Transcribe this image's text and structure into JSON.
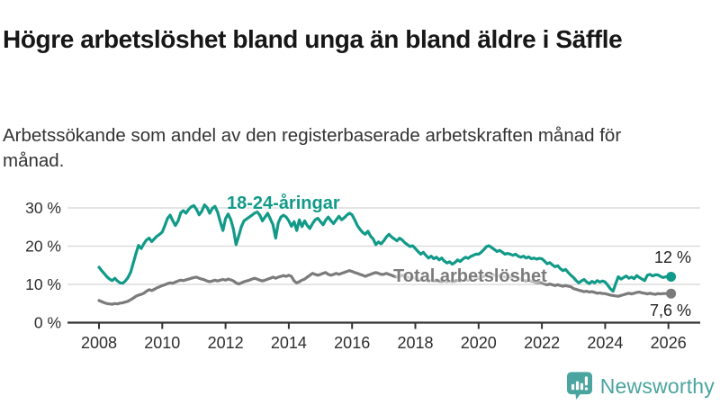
{
  "title": "Högre arbetslöshet bland unga än bland äldre i Säffle",
  "subtitle": "Arbetssökande som andel av den registerbaserade arbetskraften månad för månad.",
  "branding": {
    "name": "Newsworthy",
    "icon": "bar-chart-speech-bubble-icon",
    "color": "#4AA49F"
  },
  "colors": {
    "accent_teal": "#129A89",
    "neutral_gray": "#7B7B7B",
    "grid": "#DCDCDC",
    "axis": "#333333",
    "text": "#171717"
  },
  "chart_data": {
    "type": "line",
    "title": "Högre arbetslöshet bland unga än bland äldre i Säffle",
    "subtitle": "Arbetssökande som andel av den registerbaserade arbetskraften månad för månad.",
    "x_interval": "monthly",
    "x_start": "2008-01",
    "x_end": "2026-02",
    "x_tick_labels": [
      "2008",
      "2010",
      "2012",
      "2014",
      "2016",
      "2018",
      "2020",
      "2022",
      "2024",
      "2026"
    ],
    "y_ticks": [
      0,
      10,
      20,
      30
    ],
    "y_tick_labels": [
      "0 %",
      "10 %",
      "20 %",
      "30 %"
    ],
    "ylim": [
      0,
      33
    ],
    "grid": "horizontal",
    "legend_position": "inline-labels",
    "series": [
      {
        "name": "18-24-åringar",
        "color": "#129A89",
        "end_label": "12 %",
        "end_value": 12,
        "values": [
          14.5,
          13.6,
          12.8,
          12.0,
          11.4,
          11.0,
          11.6,
          10.9,
          10.4,
          10.3,
          10.9,
          11.8,
          13.2,
          15.6,
          18.0,
          20.2,
          19.4,
          20.6,
          21.6,
          22.1,
          21.2,
          21.9,
          22.6,
          23.1,
          23.7,
          25.4,
          27.3,
          28.1,
          26.6,
          25.4,
          26.6,
          28.7,
          29.3,
          28.6,
          29.6,
          30.3,
          30.6,
          29.6,
          28.2,
          29.1,
          30.8,
          30.1,
          28.6,
          29.9,
          30.4,
          28.9,
          26.4,
          24.1,
          27.2,
          28.4,
          26.9,
          24.4,
          20.4,
          22.6,
          25.1,
          26.6,
          27.1,
          27.6,
          28.1,
          28.6,
          29.0,
          28.1,
          26.6,
          27.6,
          28.6,
          27.1,
          25.6,
          22.1,
          26.1,
          27.6,
          28.1,
          27.6,
          26.6,
          25.2,
          26.4,
          24.1,
          26.9,
          25.1,
          26.6,
          25.4,
          24.6,
          25.9,
          26.9,
          27.3,
          26.4,
          25.6,
          26.8,
          27.6,
          26.6,
          25.9,
          26.9,
          27.8,
          26.9,
          27.4,
          28.1,
          28.6,
          28.2,
          26.9,
          25.4,
          24.4,
          23.6,
          23.1,
          23.9,
          22.6,
          21.9,
          20.4,
          21.1,
          20.6,
          21.4,
          22.4,
          23.1,
          22.4,
          21.9,
          21.4,
          22.1,
          21.6,
          20.9,
          20.4,
          19.9,
          20.1,
          19.4,
          18.6,
          17.9,
          18.4,
          17.6,
          16.9,
          17.4,
          16.7,
          17.1,
          16.4,
          16.9,
          16.1,
          15.6,
          15.9,
          15.3,
          15.7,
          16.4,
          16.0,
          16.6,
          17.1,
          16.8,
          17.3,
          17.6,
          17.9,
          17.9,
          18.4,
          19.1,
          19.9,
          20.1,
          19.6,
          19.1,
          18.6,
          18.9,
          18.4,
          17.9,
          18.1,
          17.9,
          17.6,
          17.9,
          17.4,
          17.1,
          17.4,
          16.9,
          17.2,
          16.7,
          16.9,
          16.6,
          16.8,
          16.7,
          16.1,
          15.4,
          15.7,
          15.1,
          14.6,
          14.9,
          14.1,
          13.6,
          13.9,
          13.1,
          12.4,
          11.8,
          11.0,
          10.4,
          10.9,
          11.3,
          10.6,
          10.2,
          10.8,
          10.4,
          11.0,
          10.6,
          10.9,
          10.6,
          9.8,
          8.8,
          8.2,
          10.2,
          12.0,
          11.4,
          11.8,
          12.2,
          11.6,
          11.9,
          11.5,
          12.3,
          11.8,
          11.4,
          11.0,
          12.4,
          12.6,
          12.2,
          12.5,
          12.5,
          12.1,
          11.8,
          12.0,
          12.0,
          12.0
        ]
      },
      {
        "name": "Total arbetslöshet",
        "color": "#7B7B7B",
        "end_label": "7,6 %",
        "end_value": 7.6,
        "values": [
          5.8,
          5.5,
          5.2,
          5.0,
          4.9,
          4.8,
          5.0,
          4.9,
          5.1,
          5.2,
          5.4,
          5.6,
          6.0,
          6.4,
          6.9,
          7.2,
          7.4,
          7.7,
          8.2,
          8.6,
          8.4,
          8.7,
          9.1,
          9.4,
          9.7,
          9.9,
          10.2,
          10.4,
          10.3,
          10.6,
          10.9,
          11.1,
          11.0,
          11.2,
          11.4,
          11.6,
          11.8,
          11.9,
          11.6,
          11.4,
          11.2,
          10.9,
          10.7,
          10.9,
          11.1,
          10.9,
          11.1,
          11.3,
          11.1,
          11.4,
          11.2,
          10.9,
          10.4,
          10.1,
          10.4,
          10.7,
          10.9,
          11.1,
          11.4,
          11.6,
          11.4,
          11.1,
          10.9,
          11.1,
          11.4,
          11.6,
          11.9,
          11.6,
          11.9,
          12.1,
          12.3,
          12.1,
          12.4,
          12.1,
          10.9,
          10.4,
          10.7,
          11.1,
          11.4,
          11.9,
          12.4,
          12.9,
          12.6,
          12.4,
          12.6,
          12.9,
          13.1,
          12.6,
          12.4,
          12.6,
          12.9,
          12.6,
          12.9,
          13.1,
          13.4,
          13.6,
          13.4,
          13.1,
          12.9,
          12.6,
          12.4,
          12.1,
          12.4,
          12.6,
          12.9,
          13.1,
          12.9,
          12.6,
          12.6,
          12.9,
          12.6,
          12.4,
          12.1,
          11.9,
          12.1,
          12.4,
          12.1,
          11.9,
          11.6,
          11.9,
          11.6,
          11.4,
          11.1,
          11.4,
          11.1,
          10.9,
          11.1,
          10.9,
          11.1,
          10.9,
          10.7,
          10.9,
          10.7,
          10.9,
          10.7,
          10.9,
          11.1,
          10.9,
          11.1,
          11.3,
          11.1,
          11.3,
          11.4,
          11.6,
          11.6,
          11.9,
          12.1,
          12.6,
          12.9,
          12.6,
          12.4,
          12.1,
          12.3,
          12.1,
          11.9,
          12.1,
          11.9,
          11.7,
          11.9,
          11.6,
          11.4,
          11.1,
          10.9,
          11.1,
          10.9,
          10.7,
          10.4,
          10.6,
          10.4,
          10.1,
          9.9,
          10.1,
          9.9,
          9.7,
          9.9,
          9.7,
          9.5,
          9.7,
          9.5,
          9.4,
          8.9,
          8.7,
          8.5,
          8.3,
          8.1,
          8.2,
          8.0,
          8.1,
          7.9,
          7.7,
          7.8,
          7.6,
          7.6,
          7.4,
          7.2,
          7.1,
          7.0,
          6.9,
          7.1,
          7.3,
          7.5,
          7.7,
          7.5,
          7.7,
          7.9,
          8.0,
          7.8,
          7.7,
          7.5,
          7.7,
          7.5,
          7.4,
          7.6,
          7.5,
          7.6,
          7.6,
          7.6,
          7.6
        ]
      }
    ]
  }
}
